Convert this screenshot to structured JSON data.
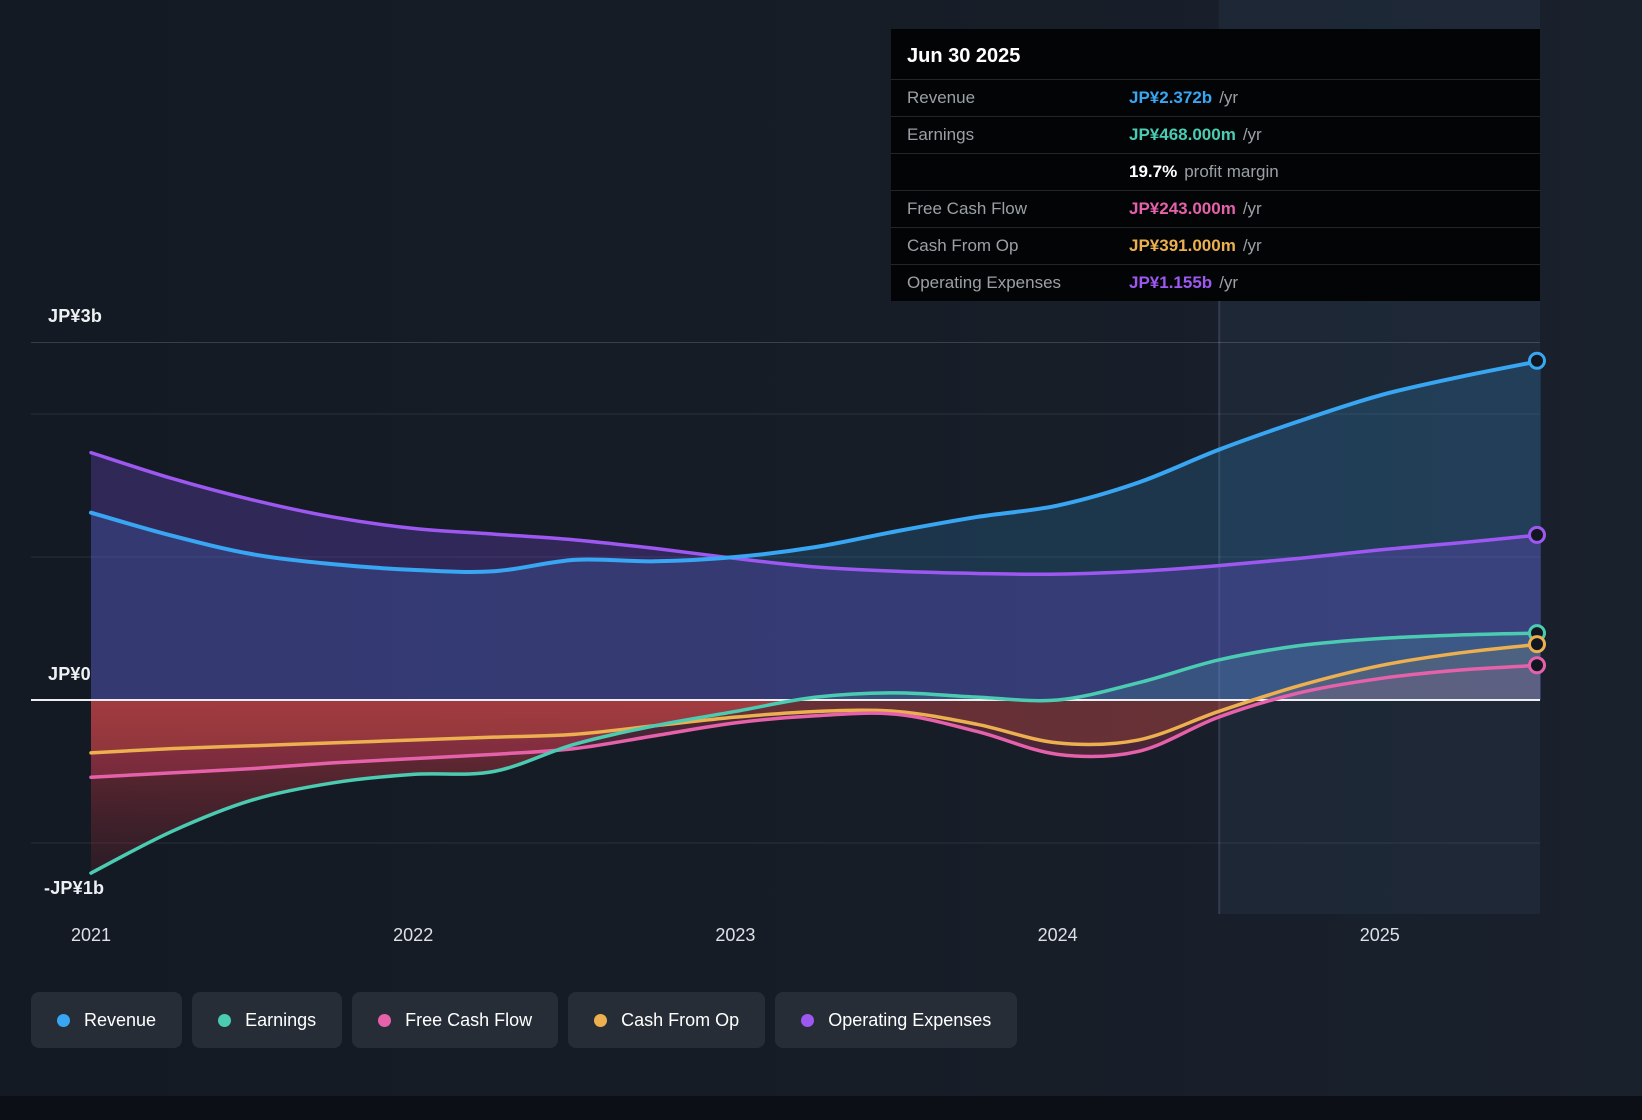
{
  "tooltip": {
    "date": "Jun 30 2025",
    "rows": [
      {
        "label": "Revenue",
        "value": "JP¥2.372b",
        "suffix": "/yr",
        "color": "#38a6f2"
      },
      {
        "label": "Earnings",
        "value": "JP¥468.000m",
        "suffix": "/yr",
        "color": "#4bccb2"
      },
      {
        "label": "",
        "value": "19.7%",
        "suffix": "profit margin",
        "color": "#ffffff"
      },
      {
        "label": "Free Cash Flow",
        "value": "JP¥243.000m",
        "suffix": "/yr",
        "color": "#e562ab"
      },
      {
        "label": "Cash From Op",
        "value": "JP¥391.000m",
        "suffix": "/yr",
        "color": "#ecb050"
      },
      {
        "label": "Operating Expenses",
        "value": "JP¥1.155b",
        "suffix": "/yr",
        "color": "#9e58f2"
      }
    ]
  },
  "axis": {
    "y_labels": [
      "JP¥3b",
      "JP¥0",
      "-JP¥1b"
    ],
    "x_labels": [
      "2021",
      "2022",
      "2023",
      "2024",
      "2025"
    ]
  },
  "legend": [
    {
      "label": "Revenue",
      "color": "#38a6f2"
    },
    {
      "label": "Earnings",
      "color": "#4bccb2"
    },
    {
      "label": "Free Cash Flow",
      "color": "#e562ab"
    },
    {
      "label": "Cash From Op",
      "color": "#ecb050"
    },
    {
      "label": "Operating Expenses",
      "color": "#9e58f2"
    }
  ],
  "chart_data": {
    "type": "area",
    "unit": "JP¥ billions per year",
    "x": [
      2021,
      2021.25,
      2021.5,
      2021.75,
      2022,
      2022.25,
      2022.5,
      2022.75,
      2023,
      2023.25,
      2023.5,
      2023.75,
      2024,
      2024.25,
      2024.5,
      2024.75,
      2025,
      2025.25,
      2025.5
    ],
    "series": [
      {
        "name": "Revenue",
        "color": "#38a6f2",
        "values": [
          1.31,
          1.15,
          1.02,
          0.95,
          0.91,
          0.9,
          0.98,
          0.97,
          1.0,
          1.07,
          1.18,
          1.28,
          1.36,
          1.52,
          1.75,
          1.95,
          2.13,
          2.26,
          2.372
        ]
      },
      {
        "name": "Earnings",
        "color": "#4bccb2",
        "values": [
          -1.21,
          -0.92,
          -0.7,
          -0.58,
          -0.52,
          -0.5,
          -0.31,
          -0.18,
          -0.08,
          0.02,
          0.05,
          0.02,
          0.0,
          0.12,
          0.28,
          0.38,
          0.43,
          0.455,
          0.468
        ]
      },
      {
        "name": "Free Cash Flow",
        "color": "#e562ab",
        "values": [
          -0.54,
          -0.51,
          -0.48,
          -0.44,
          -0.41,
          -0.38,
          -0.34,
          -0.25,
          -0.16,
          -0.11,
          -0.1,
          -0.22,
          -0.38,
          -0.36,
          -0.12,
          0.05,
          0.15,
          0.21,
          0.243
        ]
      },
      {
        "name": "Cash From Op",
        "color": "#ecb050",
        "values": [
          -0.37,
          -0.34,
          -0.32,
          -0.3,
          -0.28,
          -0.26,
          -0.24,
          -0.18,
          -0.12,
          -0.08,
          -0.08,
          -0.17,
          -0.3,
          -0.28,
          -0.08,
          0.1,
          0.24,
          0.33,
          0.391
        ]
      },
      {
        "name": "Operating Expenses",
        "color": "#9e58f2",
        "values": [
          1.73,
          1.55,
          1.4,
          1.28,
          1.2,
          1.16,
          1.12,
          1.06,
          0.99,
          0.93,
          0.9,
          0.885,
          0.88,
          0.9,
          0.94,
          0.99,
          1.05,
          1.1,
          1.155
        ]
      }
    ],
    "x_ticks": [
      "2021",
      "2022",
      "2023",
      "2024",
      "2025"
    ],
    "y_ticks_shown": [
      "JP¥3b",
      "JP¥0",
      "-JP¥1b"
    ],
    "ylim": [
      -1.45,
      3.0
    ],
    "x_range": [
      2021,
      2025.5
    ],
    "highlight_from_x": 2024.5,
    "grid": true,
    "legend_position": "bottom-left",
    "negative_fill_color": "#c43a4a"
  }
}
